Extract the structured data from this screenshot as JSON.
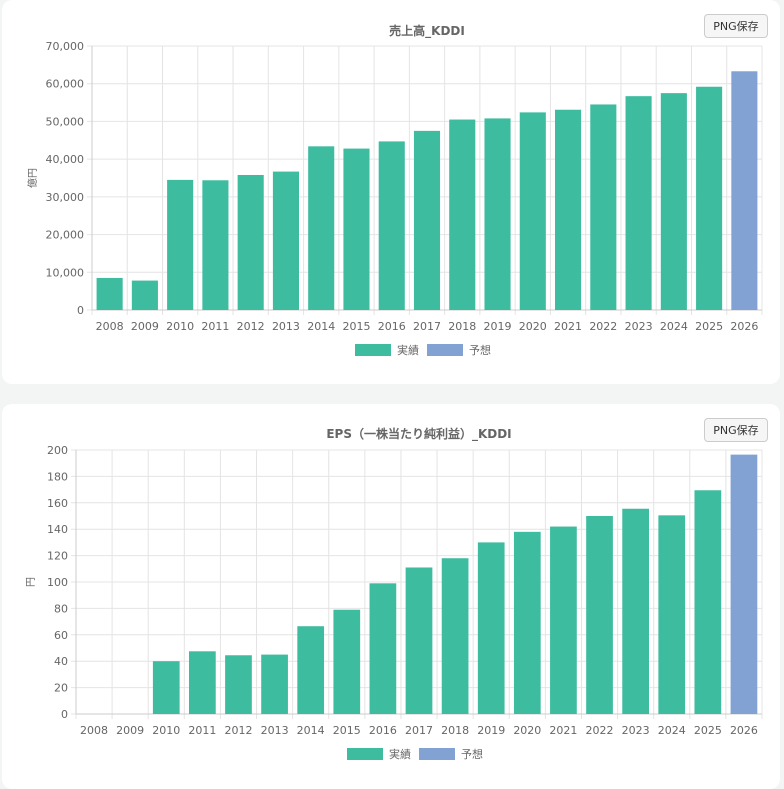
{
  "buttons": {
    "png_save": "PNG保存"
  },
  "chart_data": [
    {
      "type": "bar",
      "title": "売上高_KDDI",
      "ylabel": "億円",
      "xlabel": "",
      "ylim": [
        0,
        70000
      ],
      "yticks": [
        0,
        10000,
        20000,
        30000,
        40000,
        50000,
        60000,
        70000
      ],
      "ytick_labels": [
        "0",
        "10,000",
        "20,000",
        "30,000",
        "40,000",
        "50,000",
        "60,000",
        "70,000"
      ],
      "categories": [
        "2008",
        "2009",
        "2010",
        "2011",
        "2012",
        "2013",
        "2014",
        "2015",
        "2016",
        "2017",
        "2018",
        "2019",
        "2020",
        "2021",
        "2022",
        "2023",
        "2024",
        "2025",
        "2026"
      ],
      "values": [
        8500,
        7800,
        34500,
        34400,
        35800,
        36700,
        43400,
        42800,
        44700,
        47500,
        50500,
        50800,
        52400,
        53100,
        54500,
        56700,
        57500,
        59200,
        63300
      ],
      "kinds": [
        "実績",
        "実績",
        "実績",
        "実績",
        "実績",
        "実績",
        "実績",
        "実績",
        "実績",
        "実績",
        "実績",
        "実績",
        "実績",
        "実績",
        "実績",
        "実績",
        "実績",
        "実績",
        "予想"
      ],
      "legend": [
        {
          "label": "実績",
          "color": "#3dbca0"
        },
        {
          "label": "予想",
          "color": "#81a2d3"
        }
      ],
      "grid": true
    },
    {
      "type": "bar",
      "title": "EPS（一株当たり純利益）_KDDI",
      "ylabel": "円",
      "xlabel": "",
      "ylim": [
        0,
        200
      ],
      "yticks": [
        0,
        20,
        40,
        60,
        80,
        100,
        120,
        140,
        160,
        180,
        200
      ],
      "ytick_labels": [
        "0",
        "20",
        "40",
        "60",
        "80",
        "100",
        "120",
        "140",
        "160",
        "180",
        "200"
      ],
      "categories": [
        "2008",
        "2009",
        "2010",
        "2011",
        "2012",
        "2013",
        "2014",
        "2015",
        "2016",
        "2017",
        "2018",
        "2019",
        "2020",
        "2021",
        "2022",
        "2023",
        "2024",
        "2025",
        "2026"
      ],
      "values": [
        0,
        0,
        40,
        47.5,
        44.5,
        45,
        66.5,
        79,
        99,
        111,
        118,
        130,
        138,
        142,
        150,
        155.5,
        150.5,
        169.5,
        196.5
      ],
      "kinds": [
        "実績",
        "実績",
        "実績",
        "実績",
        "実績",
        "実績",
        "実績",
        "実績",
        "実績",
        "実績",
        "実績",
        "実績",
        "実績",
        "実績",
        "実績",
        "実績",
        "実績",
        "実績",
        "予想"
      ],
      "legend": [
        {
          "label": "実績",
          "color": "#3dbca0"
        },
        {
          "label": "予想",
          "color": "#81a2d3"
        }
      ],
      "grid": true
    }
  ]
}
